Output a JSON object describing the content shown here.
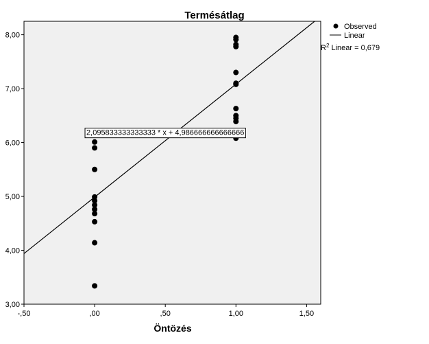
{
  "chart_data": {
    "type": "scatter",
    "title": "Termésátlag",
    "xlabel": "Öntözés",
    "ylabel": "",
    "xlim": [
      -0.5,
      1.6
    ],
    "ylim": [
      3.0,
      8.25
    ],
    "x_ticks": [
      -0.5,
      0.0,
      0.5,
      1.0,
      1.5
    ],
    "x_tick_labels": [
      "-,50",
      ",00",
      ",50",
      "1,00",
      "1,50"
    ],
    "y_ticks": [
      3,
      4,
      5,
      6,
      7,
      8
    ],
    "y_tick_labels": [
      "3,00",
      "4,00",
      "5,00",
      "6,00",
      "7,00",
      "8,00"
    ],
    "grid": false,
    "plot_background": "#f0f0f0",
    "point_color": "#000000",
    "line_color": "#000000",
    "legend_position": "top-right",
    "series": [
      {
        "name": "Observed",
        "points": [
          [
            0,
            3.34
          ],
          [
            0,
            4.14
          ],
          [
            0,
            4.53
          ],
          [
            0,
            4.68
          ],
          [
            0,
            4.76
          ],
          [
            0,
            4.84
          ],
          [
            0,
            4.92
          ],
          [
            0,
            4.99
          ],
          [
            0,
            5.5
          ],
          [
            0,
            5.9
          ],
          [
            0,
            6.01
          ],
          [
            1,
            6.08
          ],
          [
            1,
            6.39
          ],
          [
            1,
            6.45
          ],
          [
            1,
            6.5
          ],
          [
            1,
            6.63
          ],
          [
            1,
            7.08
          ],
          [
            1,
            7.1
          ],
          [
            1,
            7.3
          ],
          [
            1,
            7.78
          ],
          [
            1,
            7.82
          ],
          [
            1,
            7.91
          ],
          [
            1,
            7.95
          ]
        ]
      },
      {
        "name": "Linear",
        "fit": {
          "slope": 2.095833333333333,
          "intercept": 4.986666666666666
        }
      }
    ],
    "annotations": {
      "equation": "2,095833333333333 * x + 4,986666666666666",
      "equation_anchor": [
        0.5,
        6.19
      ],
      "r_squared_label": "Linear = 0,679"
    }
  }
}
